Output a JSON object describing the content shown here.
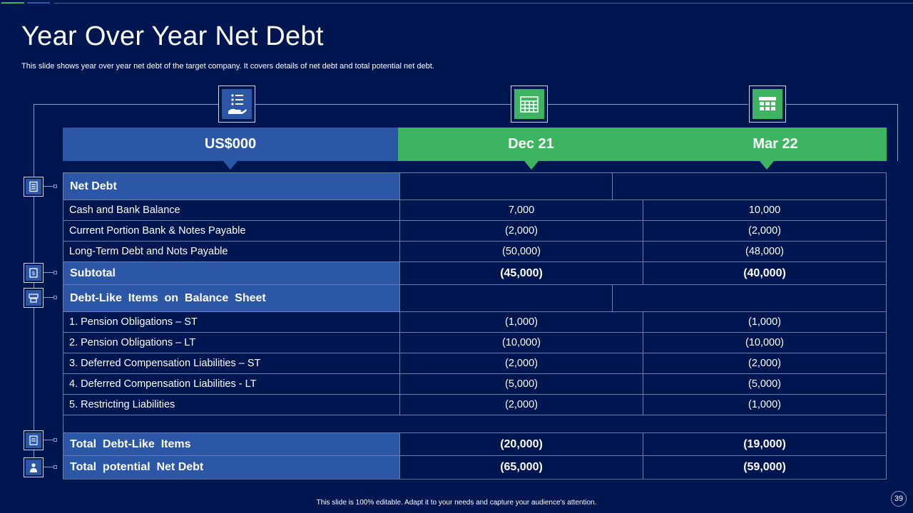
{
  "slide": {
    "title": "Year Over Year Net Debt",
    "subtitle": "This slide shows year over year net debt of the target company. It covers details of net debt and total potential net debt.",
    "footer": "This slide is 100% editable.  Adapt it to your needs and capture your audience's attention.",
    "page_number": "39"
  },
  "header": {
    "col1": "US$000",
    "col2": "Dec 21",
    "col3": "Mar 22"
  },
  "icons": {
    "col1": "list-hand-icon",
    "col2": "calendar-icon",
    "col3": "calendar-icon"
  },
  "colors": {
    "background": "#001650",
    "blue": "#2c56a6",
    "green": "#3db460"
  },
  "rows": [
    {
      "label": "Net Debt",
      "dec": "",
      "mar": ""
    },
    {
      "label": "Cash and Bank Balance",
      "dec": "7,000",
      "mar": "10,000"
    },
    {
      "label": "Current Portion Bank & Notes Payable",
      "dec": "(2,000)",
      "mar": "(2,000)"
    },
    {
      "label": "Long-Term Debt and Nots Payable",
      "dec": "(50,000)",
      "mar": "(48,000)"
    },
    {
      "label": "Subtotal",
      "dec": "(45,000)",
      "mar": "(40,000)"
    },
    {
      "label": "Debt-Like  Items  on  Balance  Sheet",
      "dec": "",
      "mar": ""
    },
    {
      "label": "1. Pension Obligations – ST",
      "dec": "(1,000)",
      "mar": "(1,000)"
    },
    {
      "label": "2. Pension Obligations – LT",
      "dec": "(10,000)",
      "mar": "(10,000)"
    },
    {
      "label": "3. Deferred Compensation Liabilities – ST",
      "dec": "(2,000)",
      "mar": "(2,000)"
    },
    {
      "label": "4. Deferred Compensation Liabilities - LT",
      "dec": "(5,000)",
      "mar": "(5,000)"
    },
    {
      "label": "5. Restricting Liabilities",
      "dec": "(2,000)",
      "mar": "(1,000)"
    },
    {
      "label": "",
      "dec": "",
      "mar": ""
    },
    {
      "label": "Total  Debt-Like  Items",
      "dec": "(20,000)",
      "mar": "(19,000)"
    },
    {
      "label": "Total  potential  Net Debt",
      "dec": "(65,000)",
      "mar": "(59,000)"
    }
  ]
}
